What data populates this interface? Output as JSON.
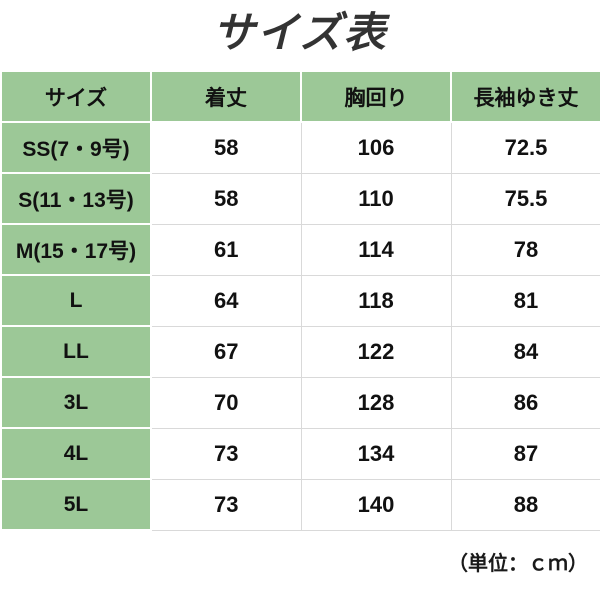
{
  "title": "サイズ表",
  "footer": {
    "unit_label": "（単位：ｃｍ）"
  },
  "colors": {
    "cell_green": "#9cc897",
    "grid_line_gray": "#d9d9d9",
    "cell_border_white": "#ffffff",
    "title_color": "#333333",
    "text_color": "#111111",
    "background": "#ffffff"
  },
  "chart_data": {
    "type": "table",
    "title": "サイズ表",
    "columns": [
      "サイズ",
      "着丈",
      "胸回り",
      "長袖ゆき丈"
    ],
    "rows": [
      [
        "SS(7・9号)",
        "58",
        "106",
        "72.5"
      ],
      [
        "S(11・13号)",
        "58",
        "110",
        "75.5"
      ],
      [
        "M(15・17号)",
        "61",
        "114",
        "78"
      ],
      [
        "L",
        "64",
        "118",
        "81"
      ],
      [
        "LL",
        "67",
        "122",
        "84"
      ],
      [
        "3L",
        "70",
        "128",
        "86"
      ],
      [
        "4L",
        "73",
        "134",
        "87"
      ],
      [
        "5L",
        "73",
        "140",
        "88"
      ]
    ],
    "unit": "cm",
    "legend_position": "none",
    "grid": true
  }
}
